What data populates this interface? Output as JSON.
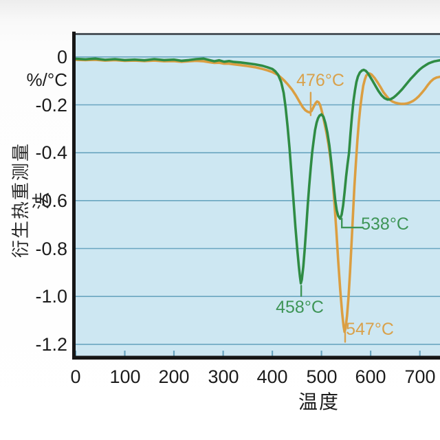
{
  "chart": {
    "y_unit_label": "%/°C",
    "y_axis_title": "衍生热重测量法",
    "x_axis_title": "温度",
    "y_tick_labels": [
      "0",
      "-0.2",
      "-0.4",
      "-0.6",
      "-0.8",
      "-1.0",
      "-1.2"
    ],
    "x_tick_labels": [
      "0",
      "100",
      "200",
      "300",
      "400",
      "500",
      "600",
      "700"
    ]
  },
  "chart_data": {
    "type": "line",
    "title": "",
    "xlabel": "温度",
    "ylabel": "衍生热重测量法",
    "y_unit": "%/°C",
    "xlim": [
      0,
      741
    ],
    "ylim": [
      -1.255,
      0.1
    ],
    "x_ticks": [
      0,
      100,
      200,
      300,
      400,
      500,
      600,
      700
    ],
    "y_ticks": [
      0,
      -0.2,
      -0.4,
      -0.6,
      -0.8,
      -1.0,
      -1.2
    ],
    "grid": "horizontal",
    "legend": "none",
    "plot_bg": "#cde7f2",
    "grid_color": "#69a5c0",
    "axis_color": "#161616",
    "top_border_color": "#4d555c",
    "series": [
      {
        "name": "orange-curve",
        "color": "#db9e41",
        "peaks": [
          {
            "label": "476°C",
            "x": 476,
            "y": -0.232
          },
          {
            "label": "547°C",
            "x": 547,
            "y": -1.148
          }
        ],
        "points": [
          [
            0,
            -0.012
          ],
          [
            20,
            -0.013
          ],
          [
            40,
            -0.012
          ],
          [
            60,
            -0.015
          ],
          [
            80,
            -0.013
          ],
          [
            100,
            -0.016
          ],
          [
            120,
            -0.015
          ],
          [
            140,
            -0.017
          ],
          [
            160,
            -0.015
          ],
          [
            180,
            -0.018
          ],
          [
            200,
            -0.017
          ],
          [
            215,
            -0.02
          ],
          [
            230,
            -0.018
          ],
          [
            245,
            -0.016
          ],
          [
            260,
            -0.018
          ],
          [
            272,
            -0.022
          ],
          [
            282,
            -0.025
          ],
          [
            292,
            -0.024
          ],
          [
            302,
            -0.028
          ],
          [
            312,
            -0.028
          ],
          [
            322,
            -0.031
          ],
          [
            335,
            -0.034
          ],
          [
            350,
            -0.038
          ],
          [
            365,
            -0.043
          ],
          [
            380,
            -0.05
          ],
          [
            390,
            -0.056
          ],
          [
            400,
            -0.063
          ],
          [
            408,
            -0.071
          ],
          [
            416,
            -0.083
          ],
          [
            424,
            -0.098
          ],
          [
            432,
            -0.116
          ],
          [
            440,
            -0.136
          ],
          [
            448,
            -0.161
          ],
          [
            456,
            -0.19
          ],
          [
            462,
            -0.21
          ],
          [
            467,
            -0.222
          ],
          [
            472,
            -0.229
          ],
          [
            476,
            -0.232
          ],
          [
            480,
            -0.225
          ],
          [
            484,
            -0.208
          ],
          [
            488,
            -0.193
          ],
          [
            491,
            -0.186
          ],
          [
            494,
            -0.189
          ],
          [
            497,
            -0.2
          ],
          [
            500,
            -0.221
          ],
          [
            503,
            -0.246
          ],
          [
            506,
            -0.276
          ],
          [
            510,
            -0.316
          ],
          [
            514,
            -0.362
          ],
          [
            518,
            -0.42
          ],
          [
            522,
            -0.5
          ],
          [
            526,
            -0.6
          ],
          [
            530,
            -0.72
          ],
          [
            534,
            -0.85
          ],
          [
            538,
            -0.97
          ],
          [
            542,
            -1.07
          ],
          [
            545,
            -1.125
          ],
          [
            547,
            -1.148
          ],
          [
            549,
            -1.13
          ],
          [
            552,
            -1.08
          ],
          [
            555,
            -1.0
          ],
          [
            558,
            -0.9
          ],
          [
            561,
            -0.78
          ],
          [
            564,
            -0.66
          ],
          [
            567,
            -0.54
          ],
          [
            570,
            -0.44
          ],
          [
            573,
            -0.35
          ],
          [
            576,
            -0.27
          ],
          [
            579,
            -0.21
          ],
          [
            582,
            -0.16
          ],
          [
            585,
            -0.12
          ],
          [
            588,
            -0.095
          ],
          [
            591,
            -0.078
          ],
          [
            594,
            -0.071
          ],
          [
            598,
            -0.069
          ],
          [
            602,
            -0.074
          ],
          [
            608,
            -0.088
          ],
          [
            614,
            -0.106
          ],
          [
            620,
            -0.126
          ],
          [
            626,
            -0.147
          ],
          [
            632,
            -0.163
          ],
          [
            638,
            -0.177
          ],
          [
            644,
            -0.186
          ],
          [
            650,
            -0.191
          ],
          [
            656,
            -0.194
          ],
          [
            662,
            -0.196
          ],
          [
            668,
            -0.196
          ],
          [
            674,
            -0.194
          ],
          [
            680,
            -0.19
          ],
          [
            686,
            -0.184
          ],
          [
            692,
            -0.175
          ],
          [
            698,
            -0.164
          ],
          [
            704,
            -0.15
          ],
          [
            710,
            -0.135
          ],
          [
            716,
            -0.118
          ],
          [
            722,
            -0.103
          ],
          [
            728,
            -0.092
          ],
          [
            734,
            -0.086
          ],
          [
            741,
            -0.083
          ]
        ]
      },
      {
        "name": "green-curve",
        "color": "#2f8c44",
        "peaks": [
          {
            "label": "458°C",
            "x": 458,
            "y": -0.945
          },
          {
            "label": "538°C",
            "x": 538,
            "y": -0.675
          }
        ],
        "points": [
          [
            0,
            -0.008
          ],
          [
            20,
            -0.01
          ],
          [
            40,
            -0.007
          ],
          [
            60,
            -0.012
          ],
          [
            80,
            -0.009
          ],
          [
            100,
            -0.013
          ],
          [
            120,
            -0.011
          ],
          [
            140,
            -0.014
          ],
          [
            160,
            -0.009
          ],
          [
            180,
            -0.013
          ],
          [
            200,
            -0.011
          ],
          [
            215,
            -0.016
          ],
          [
            230,
            -0.013
          ],
          [
            245,
            -0.009
          ],
          [
            260,
            -0.007
          ],
          [
            272,
            -0.013
          ],
          [
            282,
            -0.018
          ],
          [
            292,
            -0.014
          ],
          [
            302,
            -0.02
          ],
          [
            312,
            -0.017
          ],
          [
            322,
            -0.021
          ],
          [
            335,
            -0.023
          ],
          [
            350,
            -0.027
          ],
          [
            365,
            -0.031
          ],
          [
            380,
            -0.037
          ],
          [
            390,
            -0.043
          ],
          [
            400,
            -0.05
          ],
          [
            406,
            -0.06
          ],
          [
            412,
            -0.075
          ],
          [
            418,
            -0.105
          ],
          [
            423,
            -0.15
          ],
          [
            427,
            -0.21
          ],
          [
            431,
            -0.29
          ],
          [
            435,
            -0.38
          ],
          [
            439,
            -0.49
          ],
          [
            443,
            -0.6
          ],
          [
            447,
            -0.71
          ],
          [
            451,
            -0.81
          ],
          [
            454,
            -0.875
          ],
          [
            456,
            -0.915
          ],
          [
            458,
            -0.945
          ],
          [
            460,
            -0.93
          ],
          [
            463,
            -0.875
          ],
          [
            466,
            -0.8
          ],
          [
            469,
            -0.71
          ],
          [
            472,
            -0.62
          ],
          [
            475,
            -0.54
          ],
          [
            478,
            -0.465
          ],
          [
            481,
            -0.4
          ],
          [
            484,
            -0.35
          ],
          [
            487,
            -0.305
          ],
          [
            490,
            -0.275
          ],
          [
            493,
            -0.256
          ],
          [
            496,
            -0.245
          ],
          [
            500,
            -0.24
          ],
          [
            504,
            -0.25
          ],
          [
            508,
            -0.276
          ],
          [
            512,
            -0.316
          ],
          [
            516,
            -0.37
          ],
          [
            520,
            -0.44
          ],
          [
            524,
            -0.52
          ],
          [
            528,
            -0.6
          ],
          [
            531,
            -0.641
          ],
          [
            534,
            -0.664
          ],
          [
            538,
            -0.675
          ],
          [
            541,
            -0.658
          ],
          [
            544,
            -0.62
          ],
          [
            547,
            -0.565
          ],
          [
            550,
            -0.5
          ],
          [
            553,
            -0.448
          ],
          [
            556,
            -0.4
          ],
          [
            559,
            -0.32
          ],
          [
            562,
            -0.245
          ],
          [
            565,
            -0.185
          ],
          [
            568,
            -0.14
          ],
          [
            571,
            -0.105
          ],
          [
            574,
            -0.082
          ],
          [
            578,
            -0.065
          ],
          [
            582,
            -0.057
          ],
          [
            586,
            -0.054
          ],
          [
            590,
            -0.058
          ],
          [
            594,
            -0.067
          ],
          [
            598,
            -0.08
          ],
          [
            604,
            -0.1
          ],
          [
            610,
            -0.122
          ],
          [
            616,
            -0.143
          ],
          [
            622,
            -0.16
          ],
          [
            628,
            -0.172
          ],
          [
            634,
            -0.178
          ],
          [
            640,
            -0.177
          ],
          [
            646,
            -0.17
          ],
          [
            652,
            -0.16
          ],
          [
            658,
            -0.148
          ],
          [
            664,
            -0.135
          ],
          [
            670,
            -0.12
          ],
          [
            676,
            -0.105
          ],
          [
            682,
            -0.09
          ],
          [
            688,
            -0.077
          ],
          [
            694,
            -0.064
          ],
          [
            700,
            -0.052
          ],
          [
            706,
            -0.042
          ],
          [
            712,
            -0.034
          ],
          [
            718,
            -0.027
          ],
          [
            724,
            -0.022
          ],
          [
            730,
            -0.018
          ],
          [
            741,
            -0.014
          ]
        ]
      }
    ],
    "annotations": [
      {
        "label": "476°C",
        "color": "#d9a14b",
        "text_at": [
          498,
          -0.098
        ],
        "leader": [
          [
            478,
            -0.149
          ],
          [
            478,
            -0.244
          ]
        ]
      },
      {
        "label": "458°C",
        "color": "#3e9557",
        "text_at": [
          456,
          -1.045
        ],
        "leader": [
          [
            458.7,
            -0.955
          ],
          [
            458.7,
            -0.998
          ]
        ]
      },
      {
        "label": "547°C",
        "color": "#d9a14b",
        "text_at": [
          598,
          -1.137
        ],
        "leader": [
          [
            548,
            -1.152
          ],
          [
            548,
            -1.19
          ]
        ]
      },
      {
        "label": "538°C",
        "color": "#3e9557",
        "text_at": [
          629,
          -0.698
        ],
        "leader": [
          [
            541.3,
            -0.675
          ],
          [
            541.3,
            -0.712
          ],
          [
            583,
            -0.712
          ]
        ]
      }
    ]
  }
}
